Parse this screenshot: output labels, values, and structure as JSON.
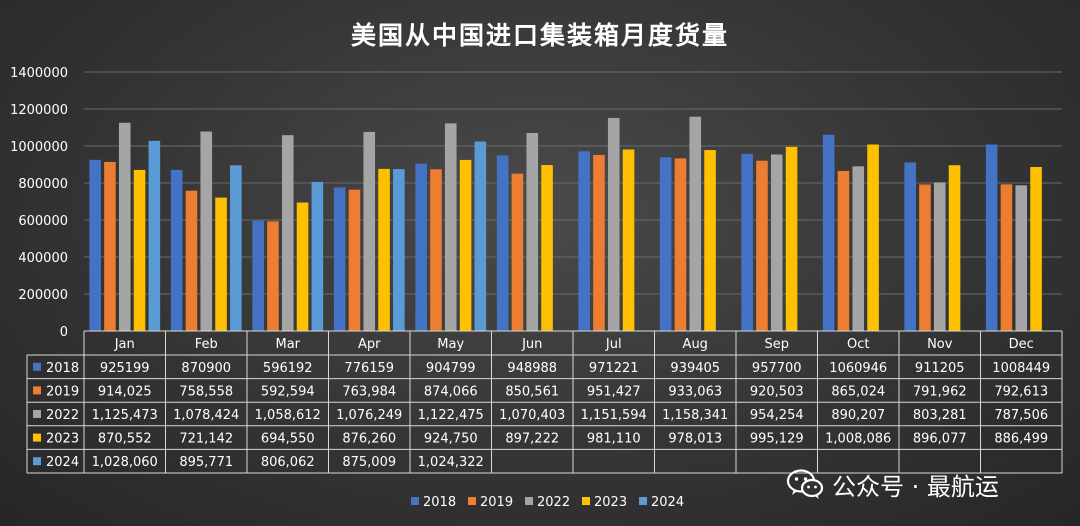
{
  "title": "美国从中国进口集装箱月度货量",
  "watermark": {
    "text": "公众号 · 最航运",
    "icon": "wechat-icon"
  },
  "chart_data": {
    "type": "bar",
    "title": "美国从中国进口集装箱月度货量",
    "xlabel": "",
    "ylabel": "",
    "ylim": [
      0,
      1400000
    ],
    "yticks": [
      "1400000",
      "1200000",
      "1000000",
      "800000",
      "600000",
      "400000",
      "200000",
      "0"
    ],
    "grid": true,
    "legend_position": "bottom",
    "categories": [
      "Jan",
      "Feb",
      "Mar",
      "Apr",
      "May",
      "Jun",
      "Jul",
      "Aug",
      "Sep",
      "Oct",
      "Nov",
      "Dec"
    ],
    "series": [
      {
        "name": "2018",
        "color": "#4472C4",
        "values": [
          925199,
          870900,
          596192,
          776159,
          904799,
          948988,
          971221,
          939405,
          957700,
          1060946,
          911205,
          1008449
        ],
        "labels": [
          "925199",
          "870900",
          "596192",
          "776159",
          "904799",
          "948988",
          "971221",
          "939405",
          "957700",
          "1060946",
          "911205",
          "1008449"
        ]
      },
      {
        "name": "2019",
        "color": "#ED7D31",
        "values": [
          914025,
          758558,
          592594,
          763984,
          874066,
          850561,
          951427,
          933063,
          920503,
          865024,
          791962,
          792613
        ],
        "labels": [
          "914,025",
          "758,558",
          "592,594",
          "763,984",
          "874,066",
          "850,561",
          "951,427",
          "933,063",
          "920,503",
          "865,024",
          "791,962",
          "792,613"
        ]
      },
      {
        "name": "2022",
        "color": "#A5A5A5",
        "values": [
          1125473,
          1078424,
          1058612,
          1076249,
          1122475,
          1070403,
          1151594,
          1158341,
          954254,
          890207,
          803281,
          787506
        ],
        "labels": [
          "1,125,473",
          "1,078,424",
          "1,058,612",
          "1,076,249",
          "1,122,475",
          "1,070,403",
          "1,151,594",
          "1,158,341",
          "954,254",
          "890,207",
          "803,281",
          "787,506"
        ]
      },
      {
        "name": "2023",
        "color": "#FFC000",
        "values": [
          870552,
          721142,
          694550,
          876260,
          924750,
          897222,
          981110,
          978013,
          995129,
          1008086,
          896077,
          886499
        ],
        "labels": [
          "870,552",
          "721,142",
          "694,550",
          "876,260",
          "924,750",
          "897,222",
          "981,110",
          "978,013",
          "995,129",
          "1,008,086",
          "896,077",
          "886,499"
        ]
      },
      {
        "name": "2024",
        "color": "#5B9BD5",
        "values": [
          1028060,
          895771,
          806062,
          875009,
          1024322,
          null,
          null,
          null,
          null,
          null,
          null,
          null
        ],
        "labels": [
          "1,028,060",
          "895,771",
          "806,062",
          "875,009",
          "1,024,322",
          "",
          "",
          "",
          "",
          "",
          "",
          ""
        ]
      }
    ]
  }
}
